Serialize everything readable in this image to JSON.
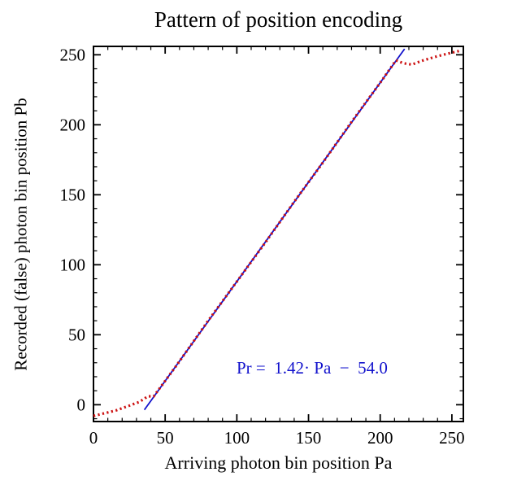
{
  "chart_data": {
    "type": "line",
    "title": "Pattern of position encoding",
    "xlabel": "Arriving photon bin position Pa",
    "ylabel": "Recorded (false) photon bin position Pb",
    "xlim": [
      0,
      258
    ],
    "ylim": [
      -12,
      256
    ],
    "xticks": [
      0,
      50,
      100,
      150,
      200,
      250
    ],
    "yticks": [
      0,
      50,
      100,
      150,
      200,
      250
    ],
    "minor_tick_step": 10,
    "grid": false,
    "legend": "none",
    "frame_color": "#000000",
    "annotation": {
      "text": "Pr =  1.42· Pa  −  54.0",
      "color": "#1111cc"
    },
    "fit": {
      "slope": 1.42,
      "intercept": -54.0
    },
    "series": [
      {
        "name": "linear-fit-line",
        "style": "solid",
        "color": "#1111cc",
        "points": [
          [
            35.5,
            -3.6
          ],
          [
            217.0,
            254.2
          ]
        ]
      },
      {
        "name": "recorded-position-data",
        "style": "dotted",
        "color": "#cc1111",
        "points": [
          [
            0,
            -8
          ],
          [
            8,
            -6
          ],
          [
            16,
            -4
          ],
          [
            24,
            -1
          ],
          [
            32,
            2
          ],
          [
            38,
            6
          ],
          [
            42,
            6
          ],
          [
            50,
            17
          ],
          [
            60,
            31
          ],
          [
            80,
            60
          ],
          [
            100,
            88
          ],
          [
            120,
            116
          ],
          [
            140,
            145
          ],
          [
            160,
            173
          ],
          [
            180,
            202
          ],
          [
            200,
            230
          ],
          [
            211,
            246
          ],
          [
            216,
            244
          ],
          [
            222,
            243
          ],
          [
            230,
            246
          ],
          [
            240,
            249
          ],
          [
            248,
            251
          ],
          [
            256,
            253
          ]
        ]
      }
    ]
  }
}
